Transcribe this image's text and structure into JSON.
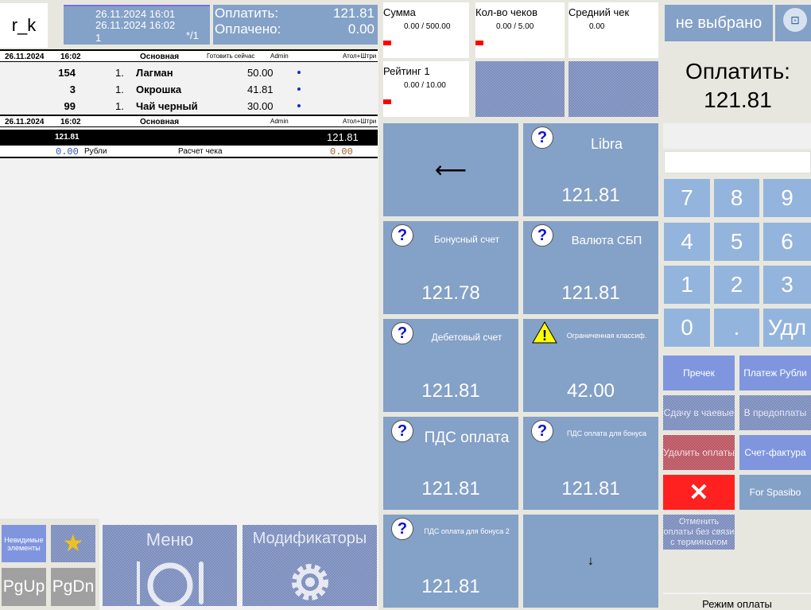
{
  "logo": "r_k",
  "info": {
    "opened": "26.11.2024  16:01",
    "current": "26.11.2024  16:02",
    "guests": "1",
    "table": "*/1"
  },
  "pay_summary": {
    "to_pay_label": "Оплатить:",
    "to_pay": "121.81",
    "paid_label": "Оплачено:",
    "paid": "0.00"
  },
  "order": {
    "header": {
      "date": "26.11.2024",
      "time": "16:02",
      "menu": "Основная",
      "course": "Готовить сейчас",
      "user": "Admin",
      "device": "Атол+Штри"
    },
    "items": [
      {
        "code": "154",
        "qty": "1.",
        "name": "Лагман",
        "price": "50.00"
      },
      {
        "code": "3",
        "qty": "1.",
        "name": "Окрошка",
        "price": "41.81"
      },
      {
        "code": "99",
        "qty": "1.",
        "name": "Чай черный",
        "price": "30.00"
      }
    ],
    "footer": {
      "date": "26.11.2024",
      "time": "16:02",
      "menu": "Основная",
      "user": "Admin",
      "device": "Атол+Штри"
    },
    "total_left": "121.81",
    "total_right": "121.81",
    "payment": {
      "amount": "0.00",
      "currency": "Рубли",
      "label": "Расчет чека",
      "change": "0.00"
    }
  },
  "bottom": {
    "invisible": "Невидимые элементы",
    "pgup": "PgUp",
    "pgdn": "PgDn",
    "menu": "Меню",
    "modifiers": "Модификаторы"
  },
  "stats": [
    {
      "title": "Сумма",
      "value": "0.00 / 500.00"
    },
    {
      "title": "Кол-во чеков",
      "value": "0.00 / 5.00"
    },
    {
      "title": "Средний чек",
      "value": "0.00"
    },
    {
      "title": "Рейтинг 1",
      "value": "0.00 / 10.00"
    }
  ],
  "tiles": [
    {
      "label": "Libra",
      "amount": "121.81"
    },
    {
      "label": "Бонусный счет",
      "amount": "121.78"
    },
    {
      "label": "Валюта СБП",
      "amount": "121.81"
    },
    {
      "label": "Дебетовый счет",
      "amount": "121.81"
    },
    {
      "label": "Ограниченная классиф.",
      "amount": "42.00"
    },
    {
      "label": "ПДС оплата",
      "amount": "121.81"
    },
    {
      "label": "ПДС оплата для бонуса",
      "amount": "121.81"
    },
    {
      "label": "ПДС оплата для бонуса 2",
      "amount": "121.81"
    }
  ],
  "right": {
    "customer": "не выбрано",
    "to_pay_label": "Оплатить:",
    "to_pay": "121.81",
    "input_value": ""
  },
  "keypad": [
    "7",
    "8",
    "9",
    "4",
    "5",
    "6",
    "1",
    "2",
    "3",
    "0",
    ".",
    "Удл"
  ],
  "actions": {
    "precheck": "Пречек",
    "pay_rub": "Платеж Рубли",
    "tips": "Сдачу в чаевые",
    "prepay": "В предоплаты",
    "delete": "Удалить оплаты",
    "invoice": "Счет-фактура",
    "spasibo": "For Spasibo",
    "cancel_offline": "Отменить оплаты без связи с терминалом"
  },
  "mode": "Режим оплаты",
  "colors": {
    "tile": "#84a1c7",
    "keypad": "#93b4dc",
    "action": "#7f96de",
    "cancel": "#ff2020"
  }
}
